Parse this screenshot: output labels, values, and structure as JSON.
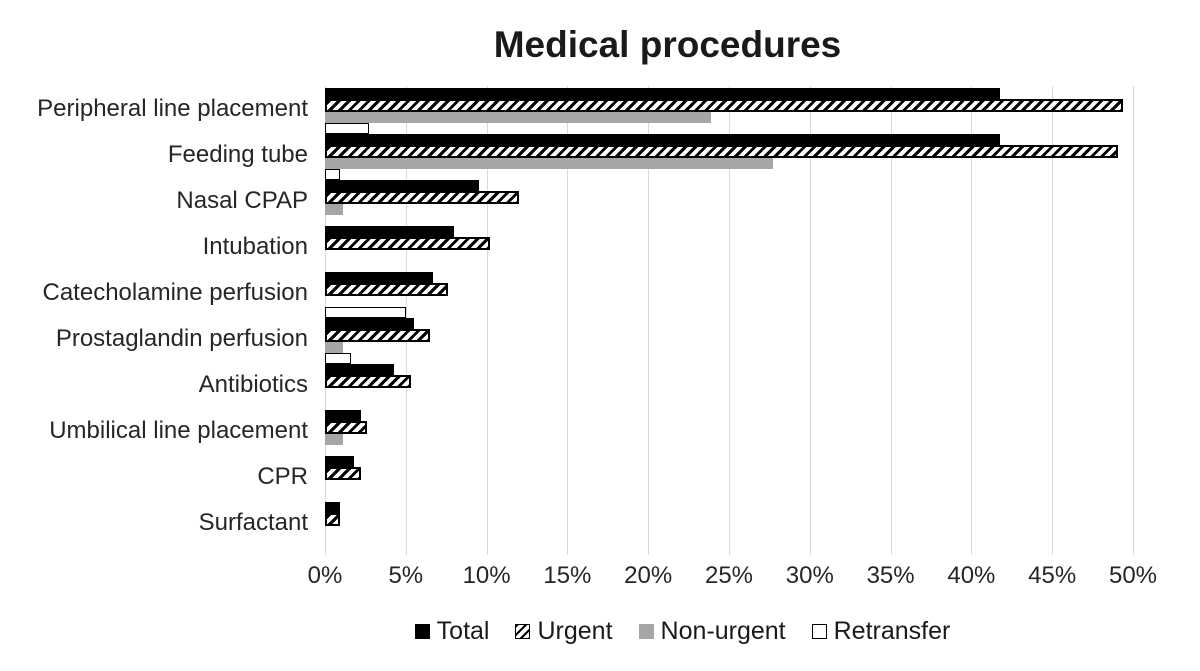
{
  "chart_data": {
    "type": "bar",
    "orientation": "horizontal",
    "title": "Medical procedures",
    "categories": [
      "Peripheral line placement",
      "Feeding tube",
      "Nasal CPAP",
      "Intubation",
      "Catecholamine perfusion",
      "Prostaglandin perfusion",
      "Antibiotics",
      "Umbilical line placement",
      "CPR",
      "Surfactant"
    ],
    "series": [
      {
        "name": "Total",
        "style": "solid-black",
        "values": [
          41.8,
          41.8,
          9.5,
          8.0,
          6.7,
          5.5,
          4.3,
          2.2,
          1.8,
          0.9
        ]
      },
      {
        "name": "Urgent",
        "style": "hatched",
        "values": [
          49.4,
          49.1,
          12.0,
          10.2,
          7.6,
          6.5,
          5.3,
          2.6,
          2.2,
          0.9
        ]
      },
      {
        "name": "Non-urgent",
        "style": "solid-gray",
        "values": [
          23.9,
          27.7,
          1.1,
          0.0,
          0.0,
          1.1,
          0.0,
          1.1,
          0.0,
          0.0
        ]
      },
      {
        "name": "Retransfer",
        "style": "outline",
        "values": [
          2.7,
          0.9,
          0.0,
          0.0,
          5.0,
          1.6,
          0.0,
          0.0,
          0.0,
          0.0
        ]
      }
    ],
    "x_axis": {
      "min": 0,
      "max": 50,
      "tick_step": 5,
      "unit": "%",
      "tick_labels": [
        "0%",
        "5%",
        "10%",
        "15%",
        "20%",
        "25%",
        "30%",
        "35%",
        "40%",
        "45%",
        "50%"
      ]
    },
    "legend": {
      "position": "bottom",
      "entries": [
        "Total",
        "Urgent",
        "Non-urgent",
        "Retransfer"
      ]
    },
    "grid": true,
    "colors": {
      "bar_black": "#000000",
      "bar_gray": "#a6a6a6",
      "gridline": "#d9d9d9",
      "text": "#262626"
    }
  }
}
